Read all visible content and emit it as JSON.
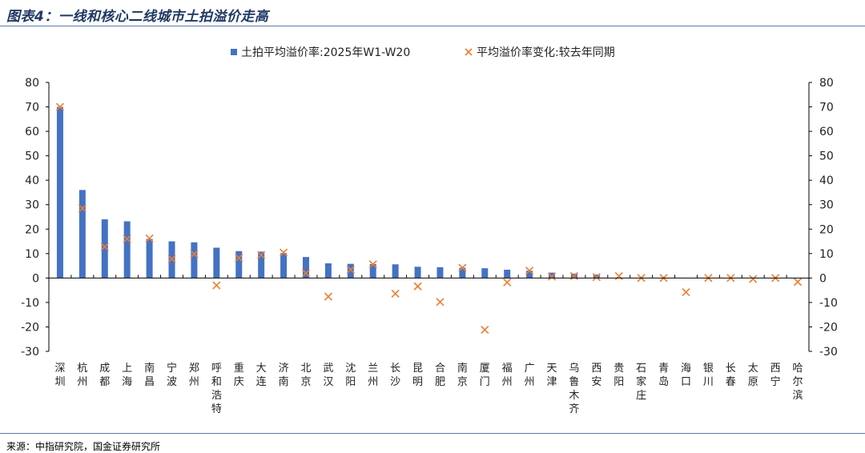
{
  "figure": {
    "title": "图表4：一线和核心二线城市土拍溢价走高",
    "source": "来源：中指研究院，国金证券研究所"
  },
  "chart_data": {
    "type": "bar",
    "categories": [
      "深圳",
      "杭州",
      "成都",
      "上海",
      "南昌",
      "宁波",
      "郑州",
      "呼和浩特",
      "重庆",
      "大连",
      "济南",
      "北京",
      "武汉",
      "沈阳",
      "兰州",
      "长沙",
      "昆明",
      "合肥",
      "南京",
      "厦门",
      "福州",
      "广州",
      "天津",
      "乌鲁木齐",
      "西安",
      "贵阳",
      "石家庄",
      "青岛",
      "海口",
      "银川",
      "长春",
      "太原",
      "西宁",
      "哈尔滨"
    ],
    "series": [
      {
        "name": "土拍平均溢价率:2025年W1-W20",
        "type": "bar",
        "axis": "left",
        "color": "#4472c4",
        "values": [
          70.0,
          36.0,
          24.0,
          23.2,
          16.0,
          15.0,
          14.6,
          12.4,
          11.0,
          10.8,
          10.2,
          8.6,
          6.0,
          5.8,
          5.7,
          5.6,
          4.6,
          4.4,
          4.2,
          4.0,
          3.4,
          3.0,
          2.2,
          1.8,
          1.4,
          0,
          0,
          0,
          0,
          0,
          0,
          0,
          0,
          0
        ]
      },
      {
        "name": "平均溢价率变化:较去年同期",
        "type": "scatter",
        "marker": "x",
        "axis": "right",
        "color": "#ed7d31",
        "values": [
          70.0,
          28.5,
          12.8,
          16.0,
          16.2,
          7.8,
          9.8,
          -3.0,
          8.2,
          9.4,
          10.4,
          2.0,
          -7.6,
          3.4,
          5.6,
          -6.4,
          -3.4,
          -9.8,
          4.2,
          -21.2,
          -1.8,
          3.0,
          0.6,
          0.8,
          0.4,
          0.8,
          0.0,
          0.0,
          -5.8,
          0.0,
          0.0,
          -0.4,
          0.0,
          -1.6
        ]
      }
    ],
    "ylim": [
      -30,
      80
    ],
    "y2lim": [
      -30,
      80
    ],
    "yticks": [
      80,
      70,
      60,
      50,
      40,
      30,
      20,
      10,
      0,
      -10,
      -20,
      -30
    ],
    "grid": false,
    "legend": "top-center"
  }
}
